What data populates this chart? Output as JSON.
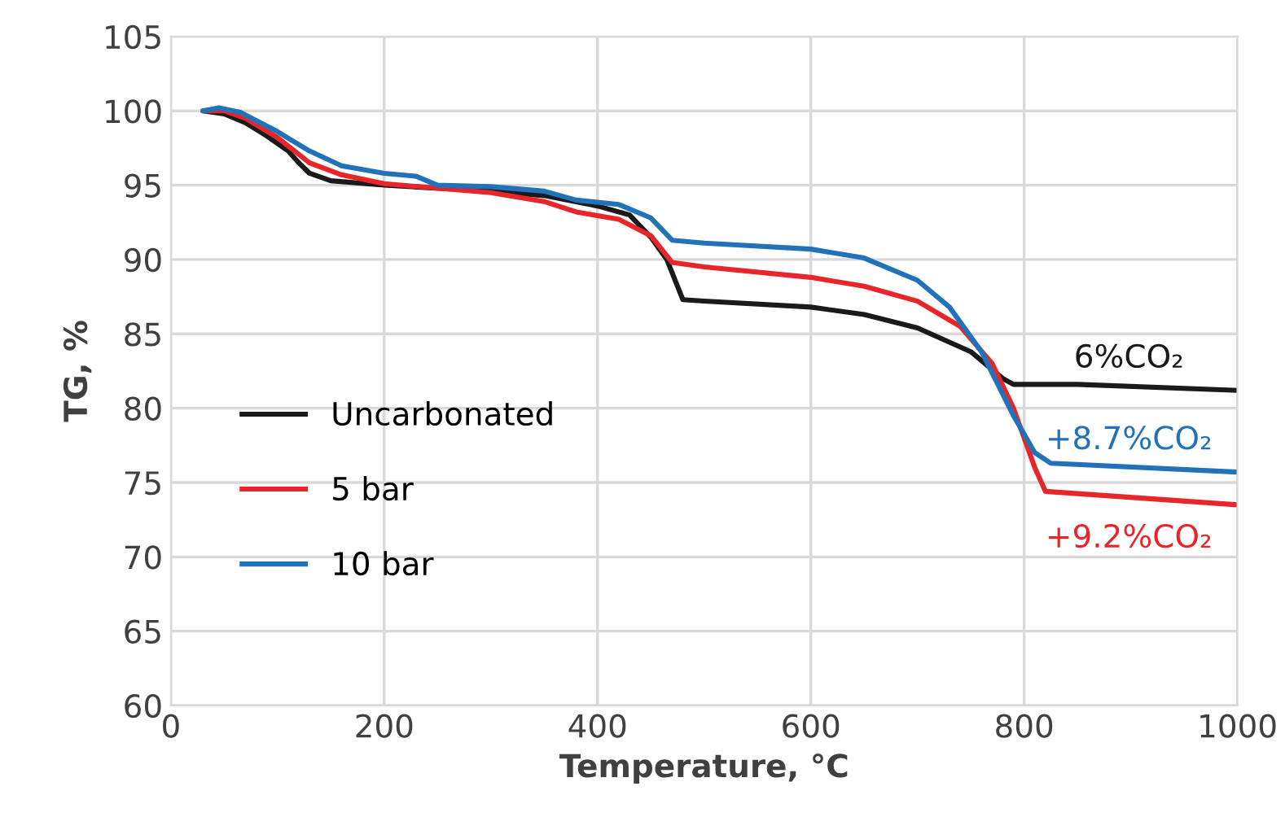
{
  "chart_data": {
    "type": "line",
    "xlabel": "Temperature, °C",
    "ylabel": "TG, %",
    "xlim": [
      0,
      1000
    ],
    "xticks": [
      0,
      200,
      400,
      600,
      800,
      1000
    ],
    "ylim": [
      60,
      105
    ],
    "yticks": [
      60,
      65,
      70,
      75,
      80,
      85,
      90,
      95,
      100,
      105
    ],
    "grid": true,
    "legend": "left",
    "marker": "none",
    "line_style": "solid",
    "series": [
      {
        "name": "Uncarbonated",
        "color": "#1a1a1a",
        "x": [
          30,
          50,
          70,
          90,
          110,
          120,
          130,
          150,
          200,
          300,
          350,
          400,
          430,
          450,
          465,
          480,
          500,
          600,
          650,
          700,
          750,
          780,
          790,
          850,
          1000
        ],
        "values": [
          100,
          99.8,
          99.2,
          98.3,
          97.3,
          96.5,
          95.8,
          95.3,
          95.0,
          94.6,
          94.3,
          93.6,
          93.0,
          91.5,
          90,
          87.3,
          87.2,
          86.8,
          86.3,
          85.4,
          83.8,
          82.0,
          81.6,
          81.6,
          81.2
        ]
      },
      {
        "name": "5 bar",
        "color": "#e8262a",
        "x": [
          30,
          50,
          70,
          100,
          130,
          160,
          200,
          250,
          300,
          350,
          380,
          420,
          450,
          470,
          500,
          600,
          650,
          700,
          740,
          770,
          790,
          810,
          820,
          1000
        ],
        "values": [
          100,
          100.0,
          99.5,
          98.2,
          96.5,
          95.7,
          95.1,
          94.8,
          94.5,
          93.9,
          93.2,
          92.7,
          91.6,
          89.8,
          89.5,
          88.8,
          88.2,
          87.2,
          85.5,
          83,
          80,
          76,
          74.4,
          73.5
        ]
      },
      {
        "name": "10 bar",
        "color": "#2272b9",
        "x": [
          30,
          45,
          65,
          100,
          130,
          160,
          200,
          230,
          250,
          300,
          350,
          380,
          420,
          450,
          470,
          500,
          600,
          650,
          700,
          730,
          760,
          790,
          810,
          825,
          1000
        ],
        "values": [
          100,
          100.2,
          99.9,
          98.6,
          97.3,
          96.3,
          95.8,
          95.6,
          95.0,
          94.9,
          94.6,
          94.0,
          93.7,
          92.8,
          91.3,
          91.1,
          90.7,
          90.1,
          88.6,
          86.8,
          83.8,
          79.5,
          77.0,
          76.3,
          75.7
        ]
      }
    ],
    "annotations": [
      "6%CO₂",
      "+9.2%CO₂",
      "+8.7%CO₂"
    ]
  }
}
